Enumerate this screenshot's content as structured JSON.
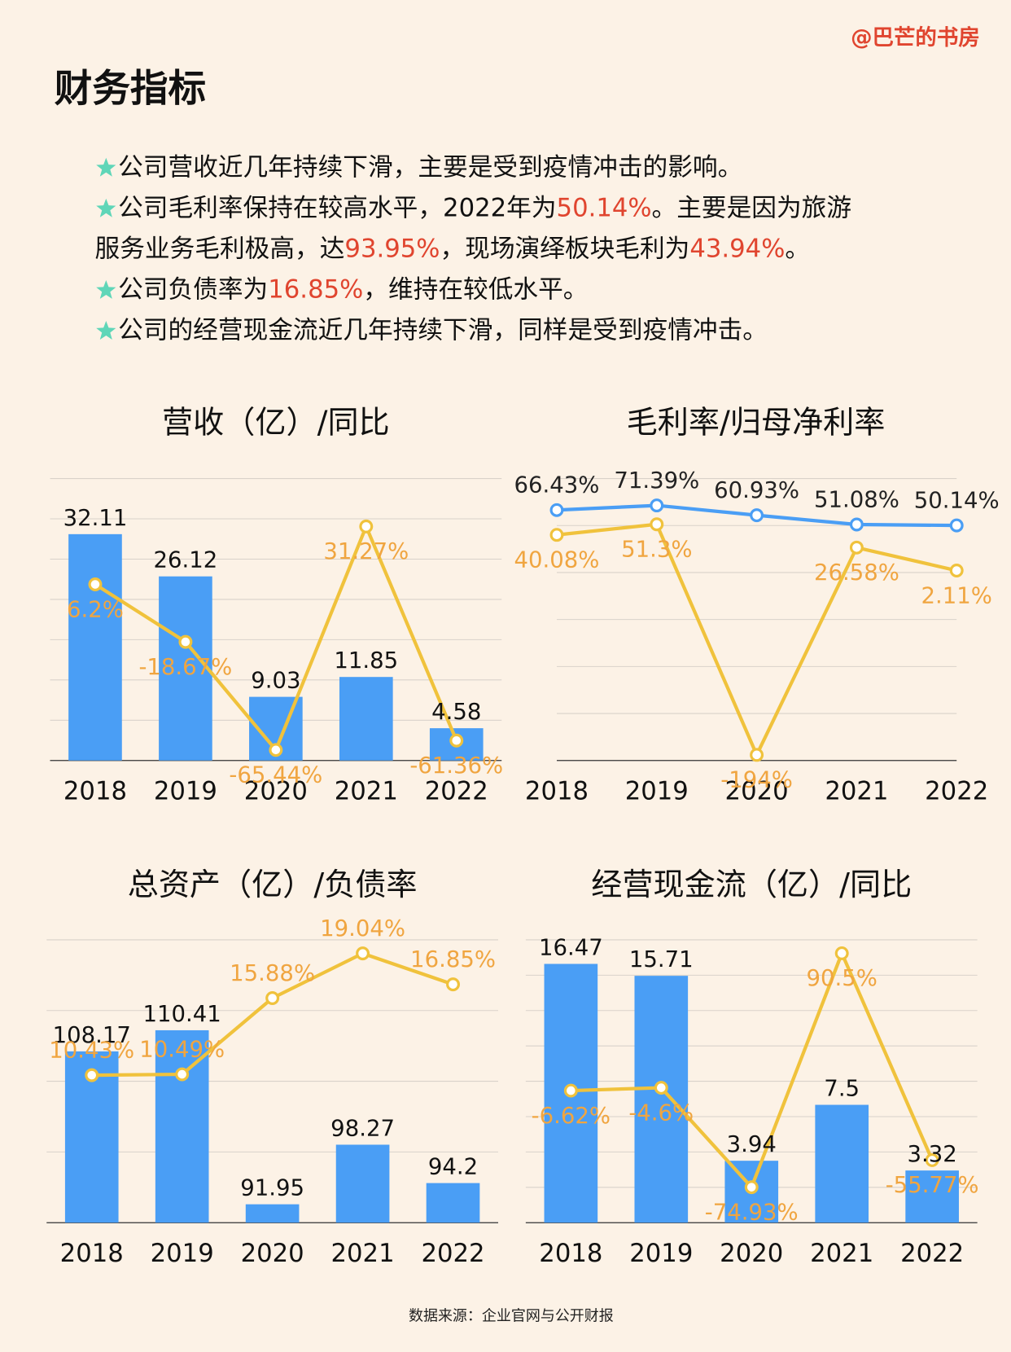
{
  "watermark": "@巴芒的书房",
  "title": "财务指标",
  "bullets": [
    {
      "bullet": true,
      "runs": [
        "公司营收近几年持续下滑，主要是受到疫情冲击的影响。"
      ]
    },
    {
      "bullet": true,
      "runs": [
        "公司毛利率保持在较高水平，2022年为",
        {
          "text": "50.14%",
          "color": "#e0452f"
        },
        "。主要是因为旅游"
      ]
    },
    {
      "bullet": false,
      "runs": [
        "服务业务毛利极高，达",
        {
          "text": "93.95%",
          "color": "#e0452f"
        },
        "，现场演绎板块毛利为",
        {
          "text": "43.94%",
          "color": "#e0452f"
        },
        "。"
      ]
    },
    {
      "bullet": true,
      "runs": [
        "公司负债率为",
        {
          "text": "16.85%",
          "color": "#e0452f"
        },
        "，维持在较低水平。"
      ]
    },
    {
      "bullet": true,
      "runs": [
        "公司的经营现金流近几年持续下滑，同样是受到疫情冲击。"
      ]
    }
  ],
  "chart_data": [
    {
      "type": "bar_line",
      "title": "营收（亿）/同比",
      "categories": [
        "2018",
        "2019",
        "2020",
        "2021",
        "2022"
      ],
      "series": [
        {
          "type": "bar",
          "color": "#4a9ef5",
          "values": [
            32.11,
            26.12,
            9.03,
            11.85,
            4.58
          ]
        },
        {
          "type": "line",
          "axis": "y2",
          "color": "#f0c23c",
          "label_color": "#f0a540",
          "values": [
            6.2,
            -18.67,
            -65.44,
            31.27,
            -61.36
          ],
          "value_labels": [
            "6.2%",
            "-18.67%",
            "-65.44%",
            "31.27%",
            "-61.36%"
          ]
        }
      ],
      "ylim": [
        0,
        40
      ],
      "y2lim": [
        -70,
        52
      ],
      "grid": true
    },
    {
      "type": "line",
      "title": "毛利率/归母净利率",
      "categories": [
        "2018",
        "2019",
        "2020",
        "2021",
        "2022"
      ],
      "series": [
        {
          "type": "line",
          "color": "#4a9ef5",
          "label_color": "#222222",
          "values": [
            66.43,
            71.39,
            60.93,
            51.08,
            50.14
          ],
          "value_labels": [
            "66.43%",
            "71.39%",
            "60.93%",
            "51.08%",
            "50.14%"
          ]
        },
        {
          "type": "line",
          "color": "#f0c23c",
          "label_color": "#f0a540",
          "values": [
            40.08,
            51.3,
            -194,
            26.58,
            2.11
          ],
          "value_labels": [
            "40.08%",
            "51.3%",
            "-194%",
            "26.58%",
            "2.11%"
          ]
        }
      ],
      "ylim": [
        -200,
        100
      ],
      "grid": true
    },
    {
      "type": "bar_line",
      "title": "总资产（亿）/负债率",
      "categories": [
        "2018",
        "2019",
        "2020",
        "2021",
        "2022"
      ],
      "series": [
        {
          "type": "bar",
          "color": "#4a9ef5",
          "values": [
            108.17,
            110.41,
            91.95,
            98.27,
            94.2
          ]
        },
        {
          "type": "line",
          "axis": "y2",
          "color": "#f0c23c",
          "label_color": "#f0a540",
          "values": [
            10.43,
            10.49,
            15.88,
            19.04,
            16.85
          ],
          "value_labels": [
            "10.43%",
            "10.49%",
            "15.88%",
            "19.04%",
            "16.85%"
          ]
        }
      ],
      "ylim": [
        90,
        120
      ],
      "y2lim": [
        0,
        20
      ],
      "grid": true
    },
    {
      "type": "bar_line",
      "title": "经营现金流（亿）/同比",
      "categories": [
        "2018",
        "2019",
        "2020",
        "2021",
        "2022"
      ],
      "series": [
        {
          "type": "bar",
          "color": "#4a9ef5",
          "values": [
            16.47,
            15.71,
            3.94,
            7.5,
            3.32
          ]
        },
        {
          "type": "line",
          "axis": "y2",
          "color": "#f0c23c",
          "label_color": "#f0a540",
          "values": [
            -6.62,
            -4.6,
            -74.93,
            90.5,
            -55.77
          ],
          "value_labels": [
            "-6.62%",
            "-4.6%",
            "-74.93%",
            "90.5%",
            "-55.77%"
          ]
        }
      ],
      "ylim": [
        0,
        18
      ],
      "y2lim": [
        -100,
        100
      ],
      "grid": true
    }
  ],
  "source": "数据来源：企业官网与公开财报"
}
